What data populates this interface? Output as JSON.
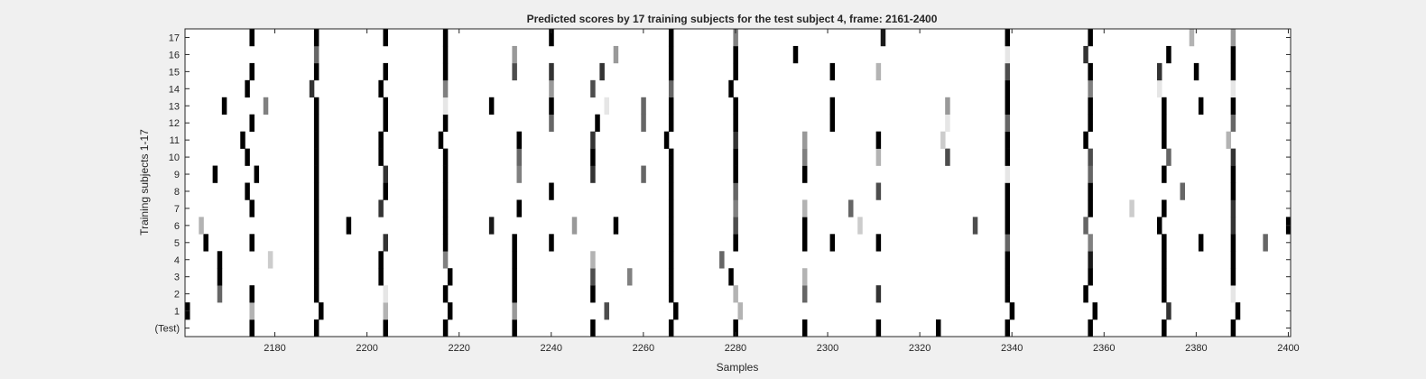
{
  "chart_data": {
    "type": "heatmap",
    "title": "Predicted scores by 17 training subjects for the test subject 4, frame: 2161-2400",
    "xlabel": "Samples",
    "ylabel": "Training subjects 1-17",
    "xlim": [
      2161,
      2400
    ],
    "x_ticks": [
      2180,
      2200,
      2220,
      2240,
      2260,
      2280,
      2300,
      2320,
      2340,
      2360,
      2380,
      2400
    ],
    "rows": [
      "(Test)",
      "1",
      "2",
      "3",
      "4",
      "5",
      "6",
      "7",
      "8",
      "9",
      "10",
      "11",
      "12",
      "13",
      "14",
      "15",
      "16",
      "17"
    ],
    "colormap": "white = 0 (no spike), black = 1 (spike); grey = intermediate score",
    "grid": false,
    "spikes": [
      {
        "row": "(Test)",
        "events": [
          [
            2175,
            1
          ],
          [
            2189,
            1
          ],
          [
            2204,
            1
          ],
          [
            2217,
            1
          ],
          [
            2232,
            1
          ],
          [
            2249,
            1
          ],
          [
            2266,
            1
          ],
          [
            2280,
            1
          ],
          [
            2295,
            1
          ],
          [
            2311,
            1
          ],
          [
            2324,
            1
          ],
          [
            2339,
            1
          ],
          [
            2357,
            1
          ],
          [
            2373,
            1
          ],
          [
            2388,
            1
          ]
        ]
      },
      {
        "row": "1",
        "events": [
          [
            2161,
            1
          ],
          [
            2175,
            0.3
          ],
          [
            2190,
            1
          ],
          [
            2204,
            0.3
          ],
          [
            2218,
            1
          ],
          [
            2232,
            0.4
          ],
          [
            2252,
            0.7
          ],
          [
            2267,
            1
          ],
          [
            2281,
            0.3
          ],
          [
            2340,
            1
          ],
          [
            2358,
            1
          ],
          [
            2374,
            0.8
          ],
          [
            2389,
            1
          ]
        ]
      },
      {
        "row": "2",
        "events": [
          [
            2168,
            0.6
          ],
          [
            2175,
            1
          ],
          [
            2189,
            1
          ],
          [
            2204,
            0.1
          ],
          [
            2217,
            1
          ],
          [
            2232,
            1
          ],
          [
            2249,
            1
          ],
          [
            2266,
            1
          ],
          [
            2280,
            0.3
          ],
          [
            2295,
            0.6
          ],
          [
            2311,
            0.8
          ],
          [
            2339,
            1
          ],
          [
            2356,
            1
          ],
          [
            2373,
            1
          ],
          [
            2388,
            0.1
          ]
        ]
      },
      {
        "row": "3",
        "events": [
          [
            2168,
            1
          ],
          [
            2189,
            1
          ],
          [
            2203,
            1
          ],
          [
            2218,
            1
          ],
          [
            2232,
            1
          ],
          [
            2249,
            0.7
          ],
          [
            2257,
            0.5
          ],
          [
            2266,
            1
          ],
          [
            2279,
            1
          ],
          [
            2295,
            0.3
          ],
          [
            2339,
            1
          ],
          [
            2357,
            1
          ],
          [
            2373,
            1
          ],
          [
            2388,
            1
          ]
        ]
      },
      {
        "row": "4",
        "events": [
          [
            2168,
            1
          ],
          [
            2179,
            0.2
          ],
          [
            2189,
            1
          ],
          [
            2203,
            1
          ],
          [
            2217,
            0.5
          ],
          [
            2232,
            1
          ],
          [
            2249,
            0.3
          ],
          [
            2266,
            1
          ],
          [
            2277,
            0.6
          ],
          [
            2339,
            1
          ],
          [
            2357,
            0.9
          ],
          [
            2373,
            1
          ],
          [
            2388,
            1
          ]
        ]
      },
      {
        "row": "5",
        "events": [
          [
            2165,
            1
          ],
          [
            2175,
            1
          ],
          [
            2189,
            1
          ],
          [
            2204,
            0.8
          ],
          [
            2217,
            1
          ],
          [
            2232,
            1
          ],
          [
            2240,
            1
          ],
          [
            2266,
            1
          ],
          [
            2280,
            1
          ],
          [
            2295,
            1
          ],
          [
            2301,
            1
          ],
          [
            2311,
            1
          ],
          [
            2339,
            0.6
          ],
          [
            2357,
            0.5
          ],
          [
            2373,
            1
          ],
          [
            2381,
            1
          ],
          [
            2388,
            1
          ],
          [
            2395,
            0.6
          ]
        ]
      },
      {
        "row": "6",
        "events": [
          [
            2164,
            0.3
          ],
          [
            2189,
            1
          ],
          [
            2196,
            1
          ],
          [
            2217,
            1
          ],
          [
            2227,
            0.9
          ],
          [
            2245,
            0.4
          ],
          [
            2254,
            1
          ],
          [
            2266,
            1
          ],
          [
            2280,
            0.7
          ],
          [
            2295,
            1
          ],
          [
            2307,
            0.2
          ],
          [
            2332,
            0.7
          ],
          [
            2339,
            1
          ],
          [
            2356,
            0.6
          ],
          [
            2372,
            1
          ],
          [
            2388,
            0.8
          ],
          [
            2400,
            1
          ]
        ]
      },
      {
        "row": "7",
        "events": [
          [
            2175,
            1
          ],
          [
            2189,
            1
          ],
          [
            2203,
            0.8
          ],
          [
            2217,
            1
          ],
          [
            2233,
            1
          ],
          [
            2266,
            1
          ],
          [
            2280,
            0.5
          ],
          [
            2295,
            0.3
          ],
          [
            2305,
            0.6
          ],
          [
            2339,
            1
          ],
          [
            2357,
            1
          ],
          [
            2366,
            0.2
          ],
          [
            2373,
            1
          ],
          [
            2388,
            0.8
          ]
        ]
      },
      {
        "row": "8",
        "events": [
          [
            2174,
            1
          ],
          [
            2189,
            1
          ],
          [
            2204,
            1
          ],
          [
            2217,
            1
          ],
          [
            2240,
            1
          ],
          [
            2266,
            1
          ],
          [
            2280,
            0.6
          ],
          [
            2311,
            0.7
          ],
          [
            2339,
            1
          ],
          [
            2357,
            1
          ],
          [
            2377,
            0.6
          ],
          [
            2388,
            1
          ]
        ]
      },
      {
        "row": "9",
        "events": [
          [
            2167,
            1
          ],
          [
            2176,
            1
          ],
          [
            2189,
            1
          ],
          [
            2204,
            0.8
          ],
          [
            2217,
            1
          ],
          [
            2233,
            0.5
          ],
          [
            2249,
            0.8
          ],
          [
            2260,
            0.6
          ],
          [
            2266,
            1
          ],
          [
            2280,
            1
          ],
          [
            2295,
            1
          ],
          [
            2339,
            0.1
          ],
          [
            2357,
            0.6
          ],
          [
            2373,
            1
          ],
          [
            2388,
            1
          ]
        ]
      },
      {
        "row": "10",
        "events": [
          [
            2174,
            1
          ],
          [
            2189,
            1
          ],
          [
            2203,
            1
          ],
          [
            2217,
            1
          ],
          [
            2233,
            0.6
          ],
          [
            2249,
            1
          ],
          [
            2266,
            1
          ],
          [
            2280,
            1
          ],
          [
            2295,
            0.5
          ],
          [
            2311,
            0.3
          ],
          [
            2326,
            0.7
          ],
          [
            2339,
            1
          ],
          [
            2357,
            0.7
          ],
          [
            2374,
            0.6
          ],
          [
            2388,
            0.8
          ]
        ]
      },
      {
        "row": "11",
        "events": [
          [
            2173,
            1
          ],
          [
            2189,
            1
          ],
          [
            2203,
            1
          ],
          [
            2216,
            1
          ],
          [
            2233,
            1
          ],
          [
            2249,
            0.8
          ],
          [
            2265,
            1
          ],
          [
            2280,
            0.8
          ],
          [
            2295,
            0.4
          ],
          [
            2311,
            1
          ],
          [
            2325,
            0.2
          ],
          [
            2339,
            1
          ],
          [
            2356,
            1
          ],
          [
            2373,
            1
          ],
          [
            2387,
            0.3
          ]
        ]
      },
      {
        "row": "12",
        "events": [
          [
            2175,
            1
          ],
          [
            2189,
            1
          ],
          [
            2204,
            1
          ],
          [
            2217,
            1
          ],
          [
            2240,
            0.6
          ],
          [
            2250,
            1
          ],
          [
            2260,
            0.6
          ],
          [
            2266,
            1
          ],
          [
            2280,
            1
          ],
          [
            2301,
            1
          ],
          [
            2326,
            0.1
          ],
          [
            2339,
            0.6
          ],
          [
            2357,
            1
          ],
          [
            2373,
            1
          ],
          [
            2388,
            0.6
          ]
        ]
      },
      {
        "row": "13",
        "events": [
          [
            2169,
            1
          ],
          [
            2178,
            0.5
          ],
          [
            2189,
            1
          ],
          [
            2204,
            1
          ],
          [
            2217,
            0.1
          ],
          [
            2227,
            1
          ],
          [
            2240,
            1
          ],
          [
            2252,
            0.1
          ],
          [
            2260,
            0.6
          ],
          [
            2266,
            1
          ],
          [
            2280,
            1
          ],
          [
            2301,
            1
          ],
          [
            2326,
            0.4
          ],
          [
            2339,
            1
          ],
          [
            2357,
            1
          ],
          [
            2373,
            1
          ],
          [
            2381,
            1
          ],
          [
            2388,
            1
          ]
        ]
      },
      {
        "row": "14",
        "events": [
          [
            2174,
            1
          ],
          [
            2188,
            0.8
          ],
          [
            2203,
            1
          ],
          [
            2217,
            0.5
          ],
          [
            2240,
            0.4
          ],
          [
            2249,
            0.7
          ],
          [
            2266,
            0.6
          ],
          [
            2279,
            1
          ],
          [
            2339,
            1
          ],
          [
            2357,
            0.5
          ],
          [
            2372,
            0.1
          ],
          [
            2388,
            0.1
          ]
        ]
      },
      {
        "row": "15",
        "events": [
          [
            2175,
            1
          ],
          [
            2189,
            1
          ],
          [
            2204,
            1
          ],
          [
            2217,
            1
          ],
          [
            2232,
            0.7
          ],
          [
            2240,
            0.8
          ],
          [
            2251,
            0.8
          ],
          [
            2266,
            1
          ],
          [
            2280,
            1
          ],
          [
            2301,
            1
          ],
          [
            2311,
            0.3
          ],
          [
            2339,
            0.7
          ],
          [
            2357,
            1
          ],
          [
            2372,
            0.8
          ],
          [
            2380,
            1
          ],
          [
            2388,
            1
          ]
        ]
      },
      {
        "row": "16",
        "events": [
          [
            2189,
            0.6
          ],
          [
            2217,
            1
          ],
          [
            2232,
            0.4
          ],
          [
            2254,
            0.4
          ],
          [
            2266,
            1
          ],
          [
            2280,
            1
          ],
          [
            2293,
            1
          ],
          [
            2339,
            0.1
          ],
          [
            2356,
            0.8
          ],
          [
            2374,
            1
          ],
          [
            2388,
            1
          ]
        ]
      },
      {
        "row": "17",
        "events": [
          [
            2175,
            1
          ],
          [
            2189,
            1
          ],
          [
            2204,
            1
          ],
          [
            2217,
            1
          ],
          [
            2240,
            1
          ],
          [
            2266,
            1
          ],
          [
            2280,
            0.5
          ],
          [
            2312,
            0.9
          ],
          [
            2339,
            1
          ],
          [
            2357,
            1
          ],
          [
            2379,
            0.3
          ],
          [
            2388,
            0.4
          ]
        ]
      }
    ]
  }
}
